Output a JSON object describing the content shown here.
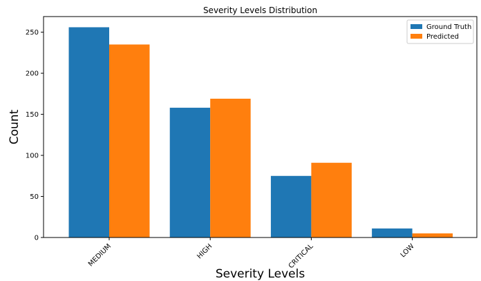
{
  "chart_data": {
    "type": "bar",
    "title": "Severity Levels Distribution",
    "xlabel": "Severity Levels",
    "ylabel": "Count",
    "categories": [
      "MEDIUM",
      "HIGH",
      "CRITICAL",
      "LOW"
    ],
    "series": [
      {
        "name": "Ground Truth",
        "values": [
          256,
          158,
          75,
          11
        ],
        "color": "#1f77b4"
      },
      {
        "name": "Predicted",
        "values": [
          235,
          169,
          91,
          5
        ],
        "color": "#ff7f0e"
      }
    ],
    "ylim": [
      0,
      269
    ],
    "yticks": [
      0,
      50,
      100,
      150,
      200,
      250
    ],
    "grid": false,
    "legend_position": "top-right"
  }
}
